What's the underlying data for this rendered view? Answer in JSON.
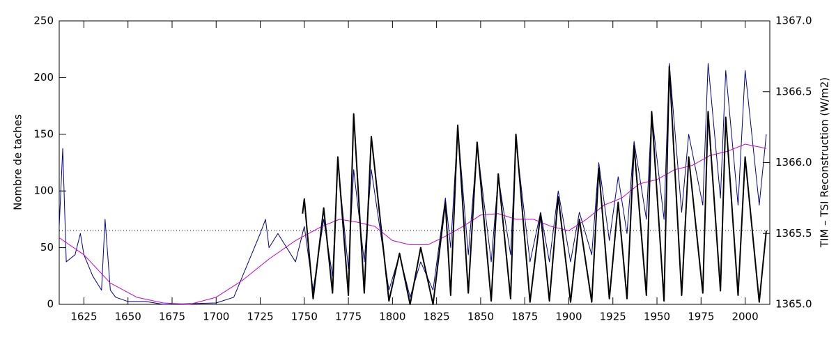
{
  "chart_data": {
    "type": "line",
    "y_label": "Nombre de taches",
    "y2_label": "TIM – TSI Reconstruction (W/m2)",
    "xlim": [
      1611,
      2014
    ],
    "xticks": [
      1625,
      1650,
      1675,
      1700,
      1725,
      1750,
      1775,
      1800,
      1825,
      1850,
      1875,
      1900,
      1925,
      1950,
      1975,
      2000
    ],
    "ylim": [
      0,
      250
    ],
    "yticks": [
      0,
      50,
      100,
      150,
      200,
      250
    ],
    "y2lim": [
      1365,
      1367
    ],
    "y2ticks": [
      {
        "value": 1365,
        "label": "1365.0"
      },
      {
        "value": 1365.5,
        "label": "1365.5"
      },
      {
        "value": 1366,
        "label": "1366.0"
      },
      {
        "value": 1366.5,
        "label": "1366.5"
      },
      {
        "value": 1367,
        "label": "1367.0"
      }
    ],
    "reference_line": 65,
    "series": [
      {
        "color": "#00008b",
        "axis": "y2",
        "x": [
          1611,
          1613,
          1615,
          1620,
          1623,
          1625,
          1630,
          1635,
          1637,
          1640,
          1643,
          1650,
          1660,
          1670,
          1700,
          1710,
          1715,
          1720,
          1725,
          1728,
          1730,
          1735,
          1740,
          1745,
          1750,
          1755,
          1761,
          1766,
          1769,
          1775,
          1778,
          1784,
          1788,
          1798,
          1804,
          1810,
          1816,
          1823,
          1830,
          1833,
          1837,
          1843,
          1848,
          1856,
          1860,
          1867,
          1870,
          1878,
          1884,
          1889,
          1894,
          1901,
          1906,
          1913,
          1917,
          1923,
          1928,
          1933,
          1937,
          1944,
          1947,
          1954,
          1957,
          1964,
          1968,
          1976,
          1979,
          1986,
          1989,
          1996,
          2000,
          2008,
          2012
        ],
        "values": [
          1365.55,
          1366.1,
          1365.3,
          1365.35,
          1365.5,
          1365.35,
          1365.2,
          1365.1,
          1365.6,
          1365.1,
          1365.05,
          1365.02,
          1365.02,
          1365.0,
          1365.01,
          1365.05,
          1365.2,
          1365.35,
          1365.5,
          1365.6,
          1365.4,
          1365.5,
          1365.4,
          1365.3,
          1365.55,
          1365.1,
          1365.6,
          1365.2,
          1366.0,
          1365.25,
          1365.95,
          1365.3,
          1365.95,
          1365.1,
          1365.35,
          1365.05,
          1365.3,
          1365.1,
          1365.75,
          1365.4,
          1366.25,
          1365.35,
          1366.12,
          1365.3,
          1365.9,
          1365.35,
          1366.15,
          1365.3,
          1365.65,
          1365.3,
          1365.8,
          1365.3,
          1365.65,
          1365.35,
          1366.0,
          1365.45,
          1365.9,
          1365.5,
          1366.15,
          1365.6,
          1366.35,
          1365.6,
          1366.7,
          1365.65,
          1366.2,
          1365.7,
          1366.7,
          1365.75,
          1366.65,
          1365.7,
          1366.65,
          1365.7,
          1366.2
        ]
      },
      {
        "color": "#cc00cc",
        "axis": "y2",
        "x": [
          1611,
          1625,
          1640,
          1655,
          1670,
          1685,
          1700,
          1715,
          1730,
          1745,
          1760,
          1770,
          1780,
          1790,
          1800,
          1810,
          1820,
          1830,
          1840,
          1850,
          1860,
          1870,
          1880,
          1890,
          1900,
          1910,
          1920,
          1930,
          1940,
          1950,
          1960,
          1970,
          1980,
          1990,
          2000,
          2012
        ],
        "values": [
          1365.47,
          1365.35,
          1365.15,
          1365.05,
          1365.01,
          1365.0,
          1365.05,
          1365.17,
          1365.32,
          1365.45,
          1365.55,
          1365.6,
          1365.58,
          1365.55,
          1365.45,
          1365.42,
          1365.42,
          1365.48,
          1365.55,
          1365.63,
          1365.64,
          1365.6,
          1365.6,
          1365.55,
          1365.52,
          1365.6,
          1365.7,
          1365.75,
          1365.85,
          1365.88,
          1365.95,
          1365.98,
          1366.05,
          1366.08,
          1366.13,
          1366.1
        ]
      },
      {
        "color": "#000000",
        "x": [
          1749,
          1750,
          1755,
          1761,
          1766,
          1769,
          1775,
          1778,
          1784,
          1788,
          1798,
          1804,
          1810,
          1816,
          1823,
          1830,
          1833,
          1837,
          1843,
          1848,
          1856,
          1860,
          1867,
          1870,
          1878,
          1884,
          1889,
          1894,
          1901,
          1906,
          1913,
          1917,
          1923,
          1928,
          1933,
          1937,
          1944,
          1947,
          1954,
          1957,
          1964,
          1968,
          1976,
          1979,
          1986,
          1989,
          1996,
          2000,
          2008,
          2012
        ],
        "values": [
          80,
          93,
          5,
          85,
          10,
          130,
          8,
          168,
          10,
          148,
          3,
          45,
          0,
          50,
          0,
          90,
          8,
          158,
          10,
          143,
          3,
          115,
          5,
          150,
          2,
          80,
          3,
          95,
          2,
          75,
          2,
          120,
          5,
          90,
          5,
          140,
          8,
          170,
          3,
          210,
          8,
          130,
          10,
          170,
          12,
          165,
          8,
          130,
          2,
          65
        ]
      }
    ]
  }
}
